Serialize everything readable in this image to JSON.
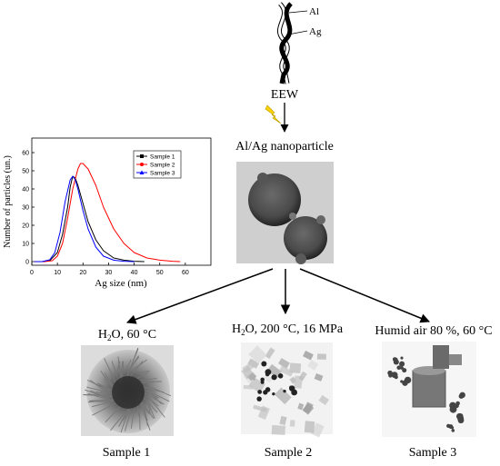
{
  "wire": {
    "label_al": "Al",
    "label_ag": "Ag"
  },
  "process": {
    "eew_label": "EEW",
    "product_label": "Al/Ag nanoparticle"
  },
  "conditions": [
    {
      "text": "H",
      "sub": "2",
      "rest": "O, 60 °C"
    },
    {
      "text": "H",
      "sub": "2",
      "rest": "O, 200 °C, 16 MPa"
    },
    {
      "text": "Humid air 80 %, 60 °C",
      "sub": "",
      "rest": ""
    }
  ],
  "samples": [
    "Sample 1",
    "Sample 2",
    "Sample 3"
  ],
  "icons": {
    "spark": "lightning-bolt-icon"
  },
  "chart_data": {
    "type": "line",
    "xlabel": "Ag size (nm)",
    "ylabel": "Number of particles (un.)",
    "xlim": [
      0,
      70
    ],
    "ylim": [
      -2,
      68
    ],
    "xticks": [
      0,
      10,
      20,
      30,
      40,
      50,
      60
    ],
    "yticks": [
      0,
      10,
      20,
      30,
      40,
      50,
      60
    ],
    "legend_position": "top-right",
    "series": [
      {
        "name": "Sample 1",
        "color": "#000000",
        "marker": "square",
        "x": [
          1,
          4,
          7,
          10,
          12,
          14,
          15,
          16,
          17,
          18,
          20,
          22,
          25,
          28,
          32,
          36,
          40,
          44
        ],
        "y": [
          0,
          0,
          0.5,
          5,
          15,
          30,
          41,
          47,
          46,
          42,
          32,
          22,
          12,
          6,
          2,
          0.8,
          0.2,
          0
        ]
      },
      {
        "name": "Sample 2",
        "color": "#ff0000",
        "marker": "circle",
        "x": [
          1,
          5,
          8,
          10,
          12,
          14,
          16,
          18,
          19,
          20,
          22,
          25,
          28,
          32,
          36,
          40,
          45,
          50,
          55,
          58
        ],
        "y": [
          0,
          0,
          0.5,
          3,
          10,
          24,
          40,
          51,
          54,
          54,
          51,
          42,
          30,
          18,
          10,
          5,
          2,
          0.8,
          0.2,
          0
        ]
      },
      {
        "name": "Sample 3",
        "color": "#0000ff",
        "marker": "triangle",
        "x": [
          1,
          4,
          7,
          9,
          11,
          13,
          15,
          16,
          17,
          18,
          20,
          22,
          25,
          28,
          32,
          36,
          40
        ],
        "y": [
          0,
          0,
          1,
          5,
          16,
          33,
          45,
          47,
          45,
          40,
          28,
          18,
          8,
          3,
          0.8,
          0.2,
          0
        ]
      }
    ]
  }
}
